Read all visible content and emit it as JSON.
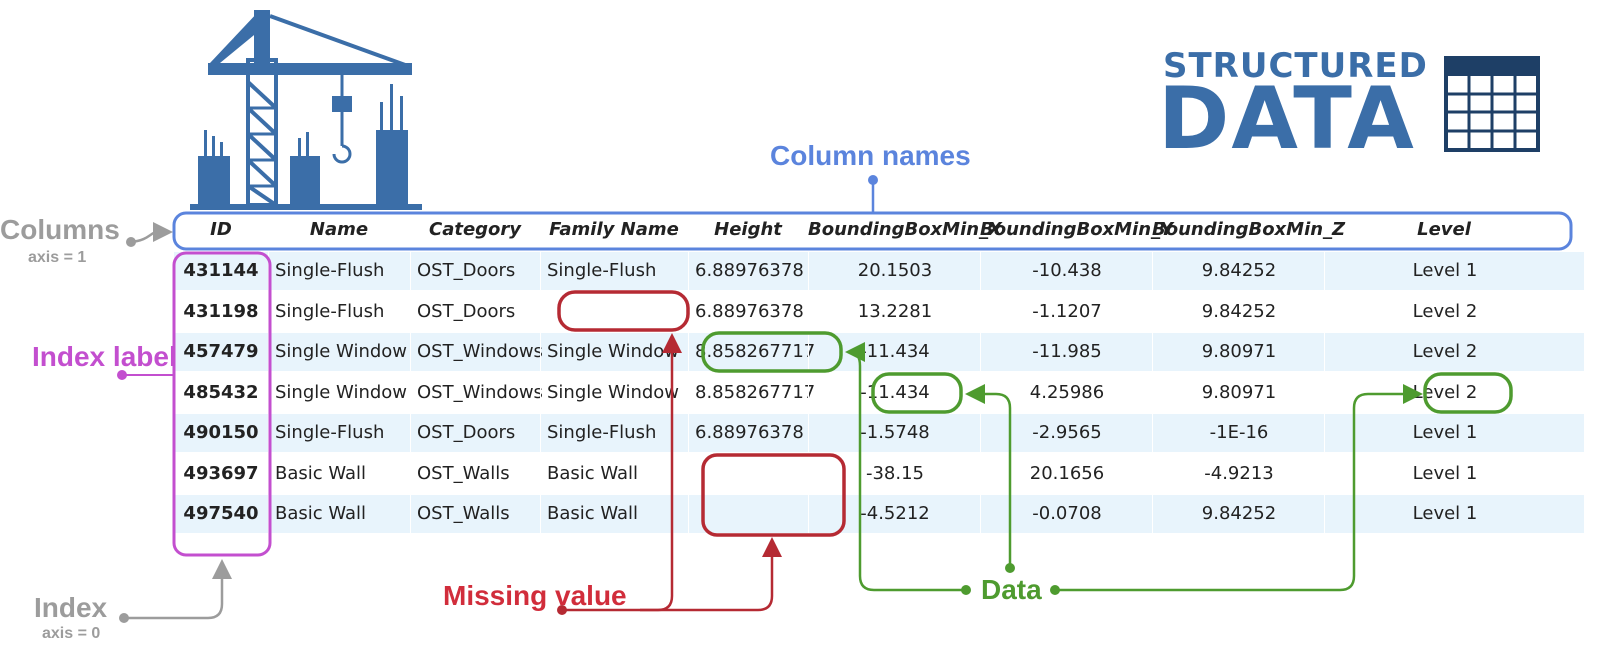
{
  "logo": {
    "top": "STRUCTURED",
    "main": "DATA"
  },
  "labels": {
    "column_names": "Column names",
    "columns": "Columns",
    "columns_axis": "axis = 1",
    "index_label": "Index label",
    "index": "Index",
    "index_axis": "axis = 0",
    "missing_value": "Missing value",
    "data": "Data"
  },
  "table": {
    "headers": [
      "ID",
      "Name",
      "Category",
      "Family Name",
      "Height",
      "BoundingBoxMin_X",
      "BoundingBoxMin_Y",
      "BoundingBoxMin_Z",
      "Level"
    ],
    "rows": [
      [
        "431144",
        "Single-Flush",
        "OST_Doors",
        "Single-Flush",
        "6.88976378",
        "20.1503",
        "-10.438",
        "9.84252",
        "Level 1"
      ],
      [
        "431198",
        "Single-Flush",
        "OST_Doors",
        "",
        "6.88976378",
        "13.2281",
        "-1.1207",
        "9.84252",
        "Level 2"
      ],
      [
        "457479",
        "Single Window",
        "OST_Windows",
        "Single Window",
        "8.858267717",
        "-11.434",
        "-11.985",
        "9.80971",
        "Level 2"
      ],
      [
        "485432",
        "Single Window",
        "OST_Windows",
        "Single Window",
        "8.858267717",
        "-11.434",
        "4.25986",
        "9.80971",
        "Level 2"
      ],
      [
        "490150",
        "Single-Flush",
        "OST_Doors",
        "Single-Flush",
        "6.88976378",
        "-1.5748",
        "-2.9565",
        "-1E-16",
        "Level 1"
      ],
      [
        "493697",
        "Basic Wall",
        "OST_Walls",
        "Basic Wall",
        "",
        "-38.15",
        "20.1656",
        "-4.9213",
        "Level 1"
      ],
      [
        "497540",
        "Basic Wall",
        "OST_Walls",
        "Basic Wall",
        "",
        "-4.5212",
        "-0.0708",
        "9.84252",
        "Level 1"
      ]
    ]
  },
  "colors": {
    "logo_blue": "#3b6ea8",
    "column_names_blue": "#5b84dd",
    "index_purple": "#c34fcf",
    "missing_red": "#b52a33",
    "data_green": "#4e9b2f",
    "axis_gray": "#9c9c9c",
    "row_stripe": "#e8f4fc"
  },
  "icons": [
    "construction-crane-icon",
    "table-grid-icon"
  ]
}
